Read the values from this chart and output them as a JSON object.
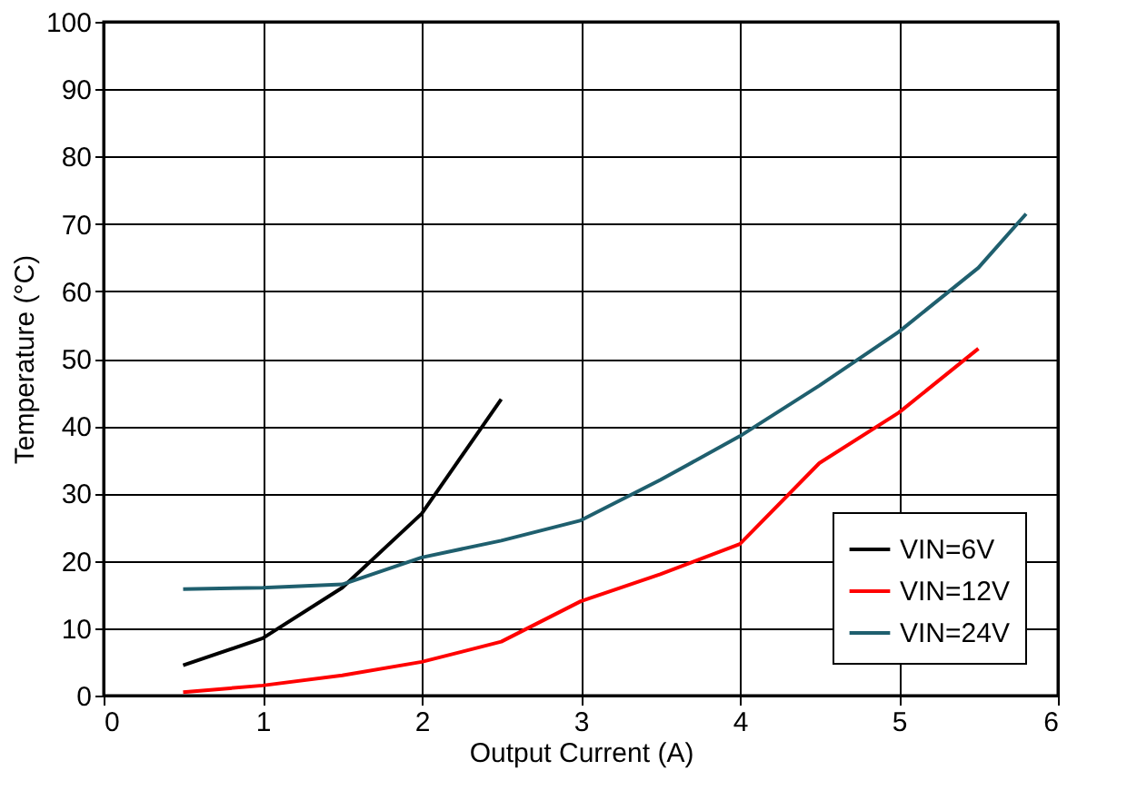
{
  "chart_data": {
    "type": "line",
    "xlabel": "Output Current (A)",
    "ylabel": "Temperature (°C)",
    "xlim": [
      0,
      6
    ],
    "xticks": [
      0,
      1,
      2,
      3,
      4,
      5,
      6
    ],
    "ylim": [
      0,
      100
    ],
    "yticks": [
      0,
      10,
      20,
      30,
      40,
      50,
      60,
      70,
      80,
      90,
      100
    ],
    "grid": true,
    "legend": "bottom right",
    "marker": "none",
    "line_style": "solid",
    "series": [
      {
        "name": "VIN=6V",
        "color": "#000000",
        "x": [
          0.5,
          1,
          1.5,
          2,
          2.5
        ],
        "values": [
          4.5,
          8.5,
          16,
          27,
          44
        ]
      },
      {
        "name": "VIN=12V",
        "color": "#ff0000",
        "x": [
          0.5,
          1,
          1.5,
          2,
          2.5,
          3,
          3.5,
          4,
          4.5,
          5,
          5.5
        ],
        "values": [
          0.5,
          1.5,
          3,
          5,
          8,
          14,
          18,
          22.5,
          34.5,
          42,
          51.5
        ]
      },
      {
        "name": "VIN=24V",
        "color": "#1f5f6e",
        "x": [
          0.5,
          1,
          1.5,
          2,
          2.5,
          3,
          3.5,
          4,
          4.5,
          5,
          5.5,
          5.8
        ],
        "values": [
          15.8,
          16,
          16.5,
          20.5,
          23,
          26,
          32,
          38.5,
          46,
          54,
          63.5,
          71.5
        ]
      }
    ]
  }
}
